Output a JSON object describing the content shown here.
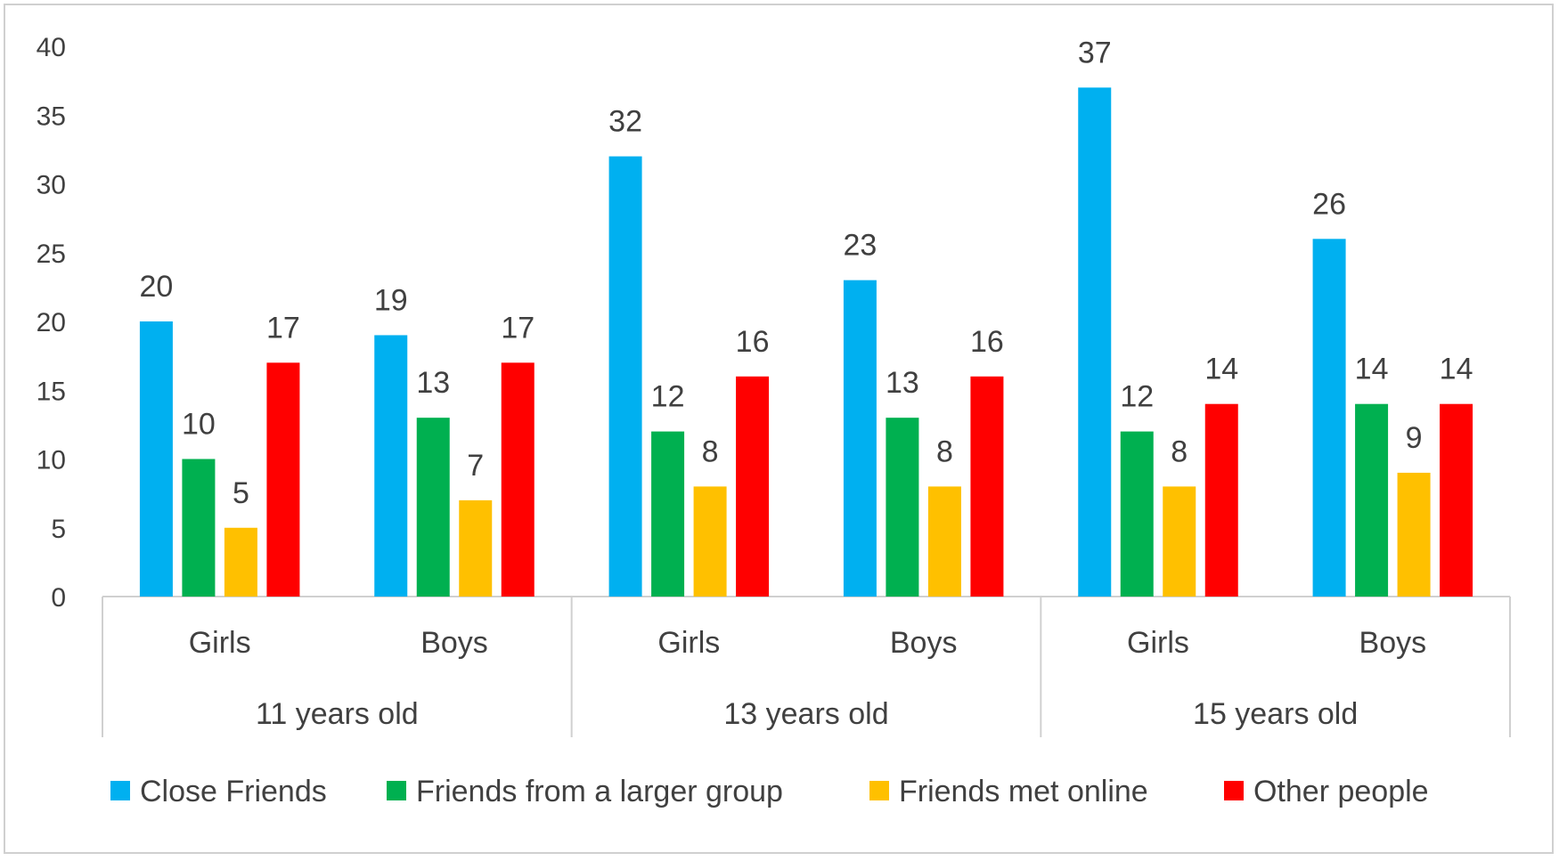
{
  "chart_data": {
    "type": "bar",
    "title": "",
    "xlabel": "",
    "ylabel": "",
    "ylim": [
      0,
      40
    ],
    "y_ticks": [
      0,
      5,
      10,
      15,
      20,
      25,
      30,
      35,
      40
    ],
    "grid": false,
    "legend_position": "bottom",
    "groups": [
      "11 years old",
      "13 years old",
      "15 years old"
    ],
    "categories": [
      "Girls",
      "Boys",
      "Girls",
      "Boys",
      "Girls",
      "Boys"
    ],
    "series": [
      {
        "name": "Close Friends",
        "color": "#00b0f0",
        "values": [
          20,
          19,
          32,
          23,
          37,
          26
        ]
      },
      {
        "name": "Friends from a larger group",
        "color": "#00b050",
        "values": [
          10,
          13,
          12,
          13,
          12,
          14
        ]
      },
      {
        "name": "Friends met online",
        "color": "#ffc000",
        "values": [
          5,
          7,
          8,
          8,
          8,
          9
        ]
      },
      {
        "name": "Other people",
        "color": "#ff0000",
        "values": [
          17,
          17,
          16,
          16,
          14,
          14
        ]
      }
    ]
  }
}
